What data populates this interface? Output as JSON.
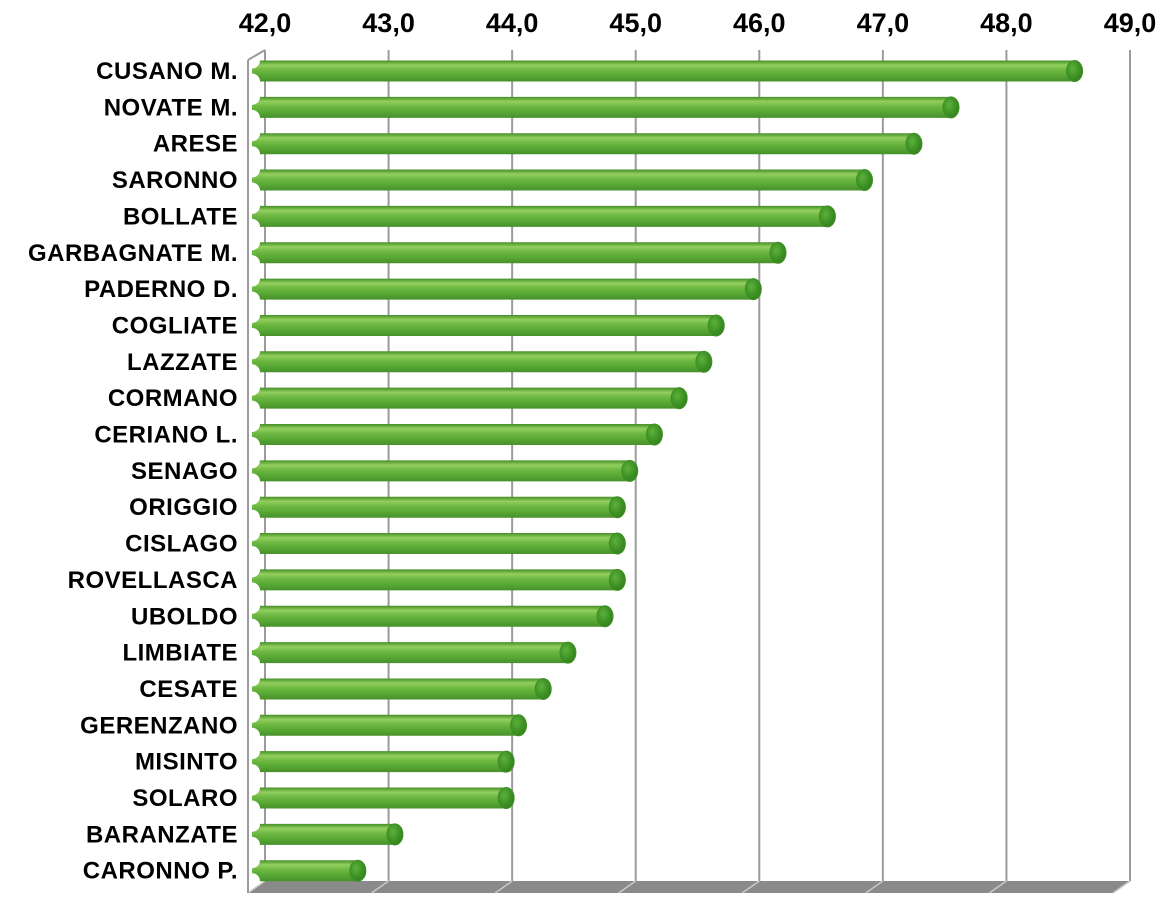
{
  "chart_data": {
    "type": "bar",
    "orientation": "horizontal",
    "style": "3d-cylinder",
    "title": "",
    "xlabel": "",
    "ylabel": "",
    "axis_position": "top",
    "grid": true,
    "xlim": [
      42.0,
      49.0
    ],
    "x_tick_step": 1.0,
    "decimal_separator": ",",
    "x_tick_labels": [
      "42,0",
      "43,0",
      "44,0",
      "45,0",
      "46,0",
      "47,0",
      "48,0",
      "49,0"
    ],
    "categories": [
      "CUSANO M.",
      "NOVATE M.",
      "ARESE",
      "SARONNO",
      "BOLLATE",
      "GARBAGNATE M.",
      "PADERNO D.",
      "COGLIATE",
      "LAZZATE",
      "CORMANO",
      "CERIANO L.",
      "SENAGO",
      "ORIGGIO",
      "CISLAGO",
      "ROVELLASCA",
      "UBOLDO",
      "LIMBIATE",
      "CESATE",
      "GERENZANO",
      "MISINTO",
      "SOLARO",
      "BARANZATE",
      "CARONNO P."
    ],
    "values": [
      48.6,
      47.6,
      47.3,
      46.9,
      46.6,
      46.2,
      46.0,
      45.7,
      45.6,
      45.4,
      45.2,
      45.0,
      44.9,
      44.9,
      44.9,
      44.8,
      44.5,
      44.3,
      44.1,
      44.0,
      44.0,
      43.1,
      42.8
    ],
    "colors": {
      "bar_body": "#62b03a",
      "bar_body_highlight": "#93cf5f",
      "bar_body_dark": "#47902b",
      "bar_cap": "#2f7f1b",
      "bar_cap_light": "#5cb13a",
      "gridline": "#9b9b9b",
      "floor": "#8a8a8a",
      "floor_slant": "#c9c9c9",
      "label": "#000000",
      "background": "#ffffff"
    }
  }
}
